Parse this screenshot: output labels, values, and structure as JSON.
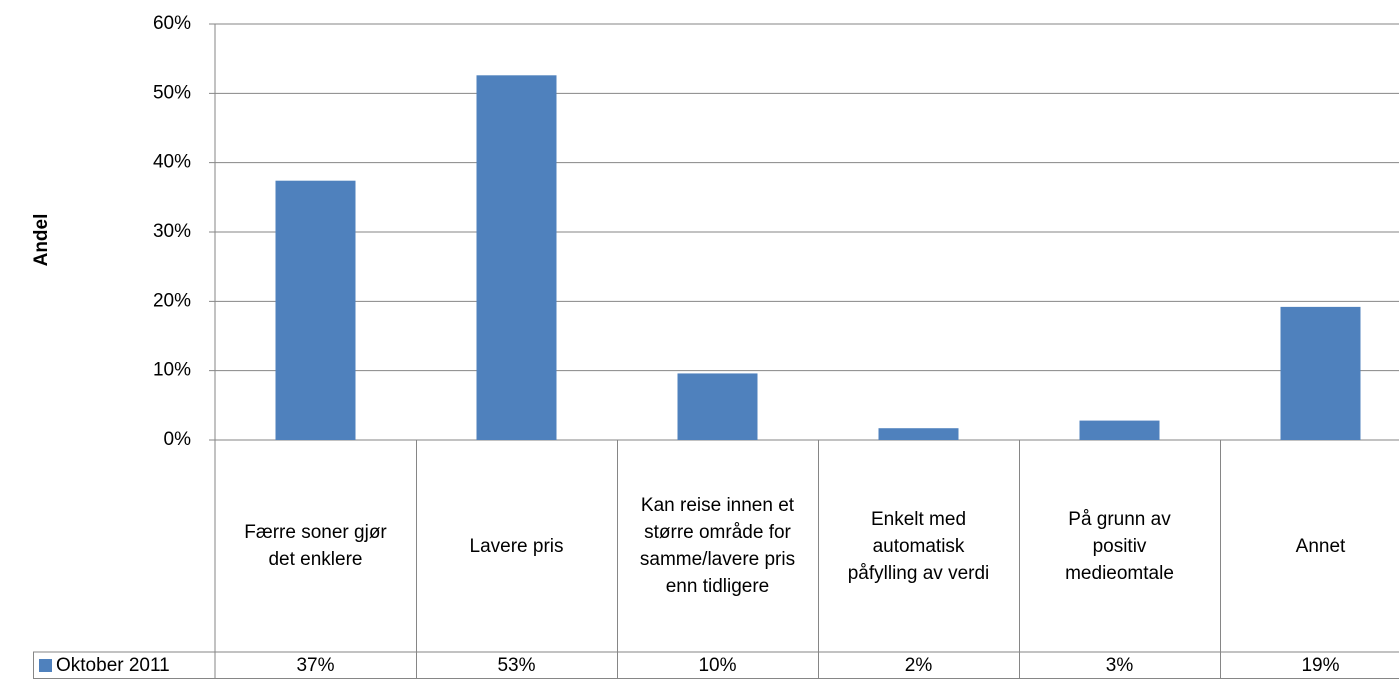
{
  "chart_data": {
    "type": "bar",
    "y_axis_label": "Andel",
    "categories": [
      "Færre soner gjør det enklere",
      "Lavere pris",
      "Kan reise innen et større område for samme/lavere pris enn tidligere",
      "Enkelt med automatisk påfylling av verdi",
      "På grunn av positiv medieomtale",
      "Annet"
    ],
    "series": [
      {
        "name": "Oktober 2011",
        "color": "#4f81bd",
        "values": [
          37.4,
          52.6,
          9.6,
          1.7,
          2.8,
          19.2
        ],
        "value_labels": [
          "37%",
          "53%",
          "10%",
          "2%",
          "3%",
          "19%"
        ]
      }
    ],
    "ylim": [
      0,
      60
    ],
    "yticks": [
      {
        "value": 0,
        "label": "0%"
      },
      {
        "value": 10,
        "label": "10%"
      },
      {
        "value": 20,
        "label": "20%"
      },
      {
        "value": 30,
        "label": "30%"
      },
      {
        "value": 40,
        "label": "40%"
      },
      {
        "value": 50,
        "label": "50%"
      },
      {
        "value": 60,
        "label": "60%"
      }
    ],
    "grid": true
  }
}
